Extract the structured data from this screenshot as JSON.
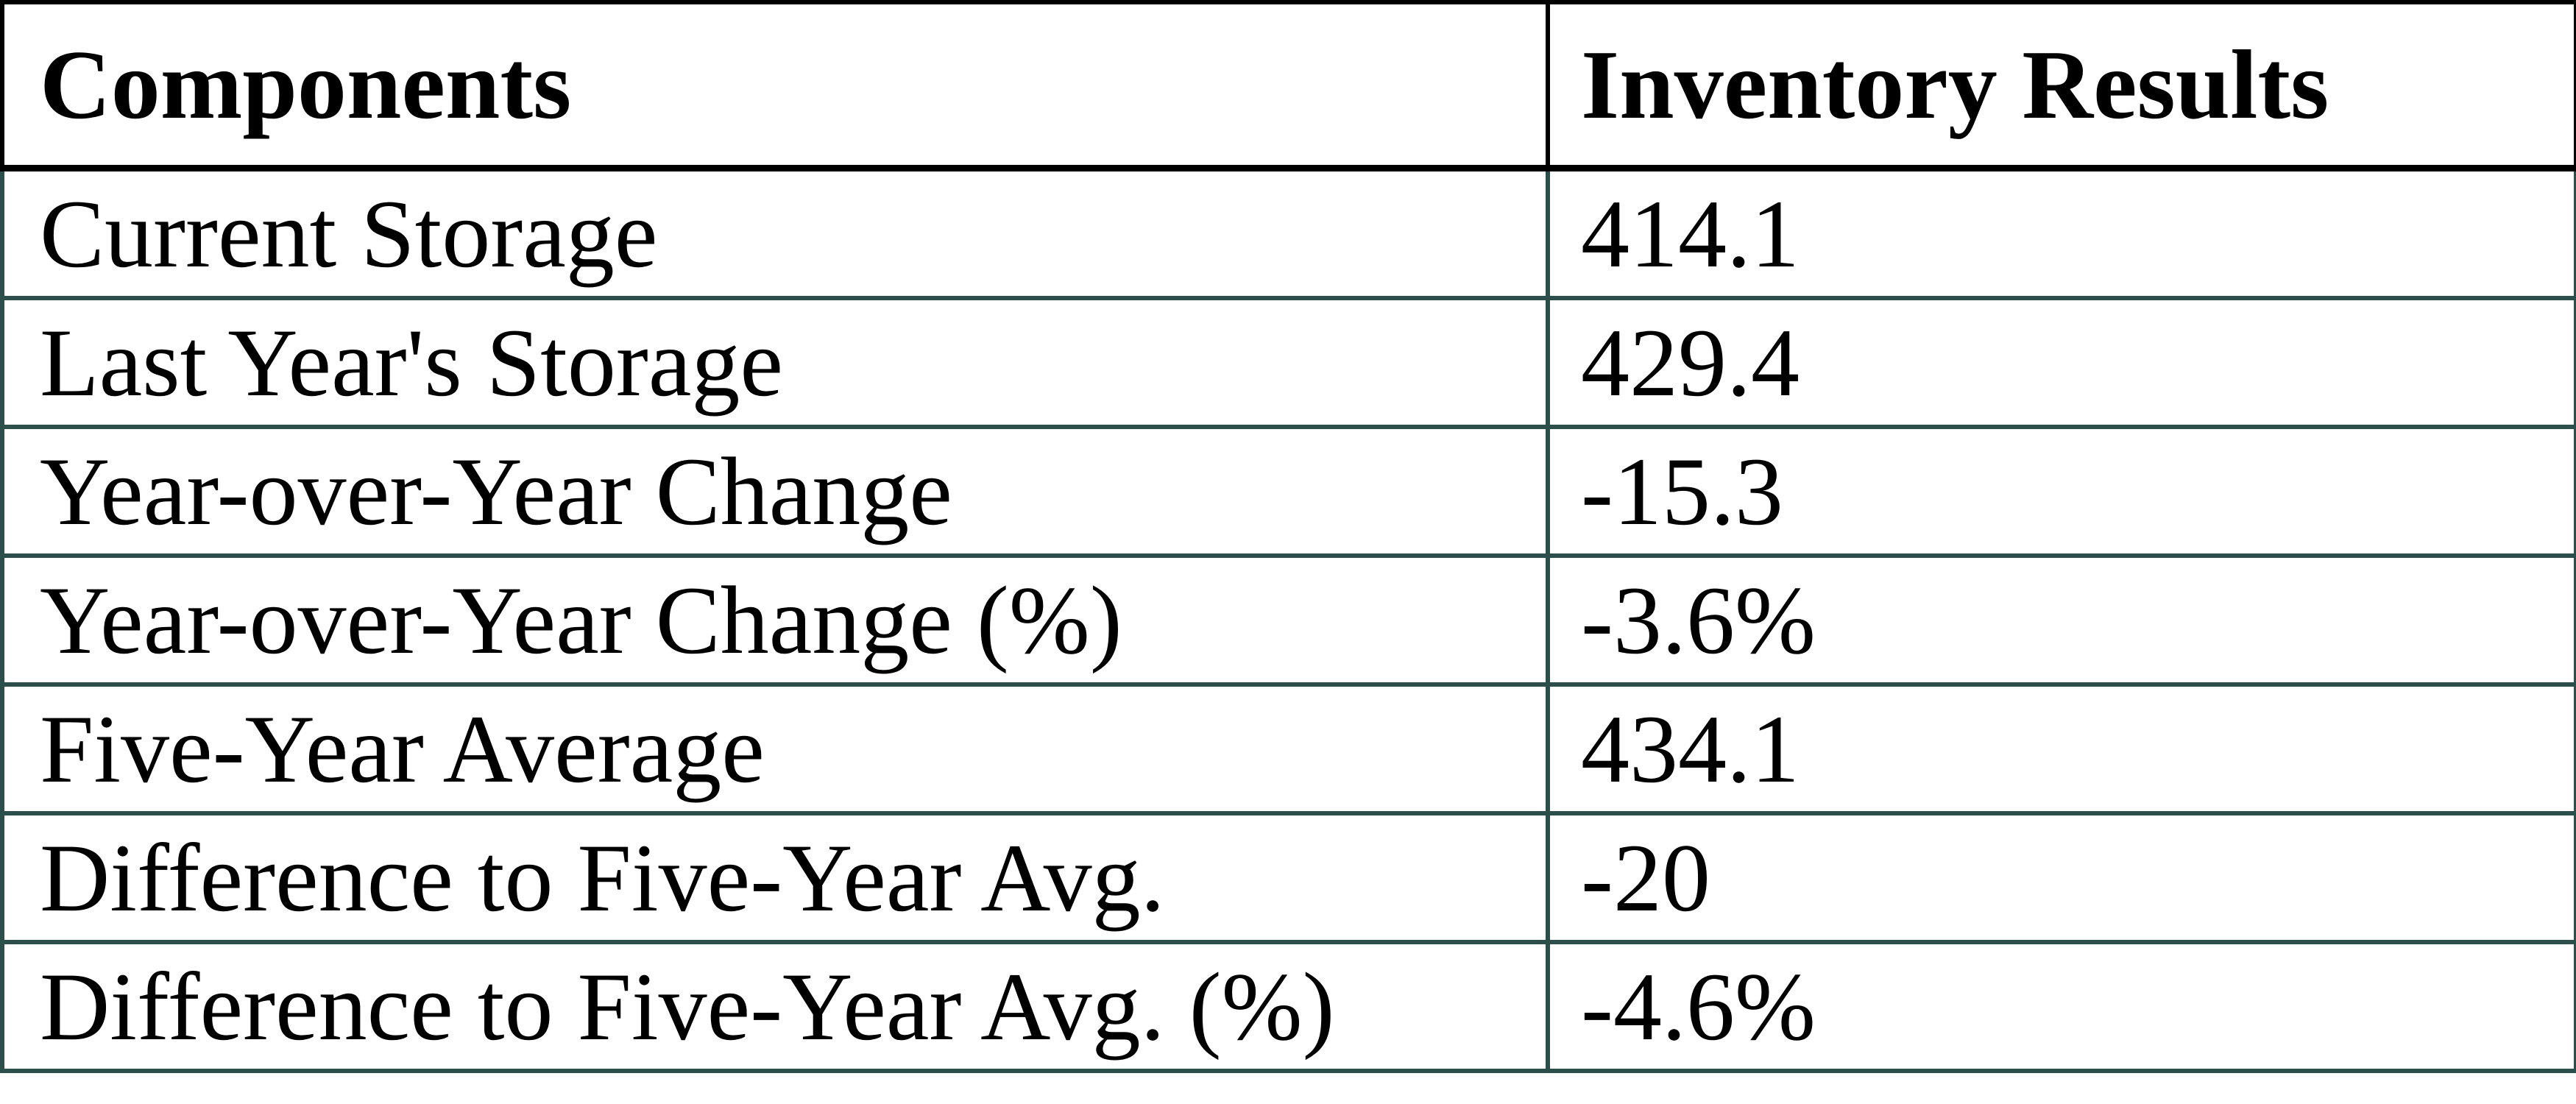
{
  "table": {
    "columns": [
      {
        "label": "Components"
      },
      {
        "label": "Inventory Results"
      }
    ],
    "rows": [
      {
        "component": "Current Storage",
        "value": "414.1"
      },
      {
        "component": "Last Year's Storage",
        "value": "429.4"
      },
      {
        "component": "Year-over-Year Change",
        "value": "-15.3"
      },
      {
        "component": "Year-over-Year Change (%)",
        "value": "-3.6%"
      },
      {
        "component": "Five-Year Average",
        "value": "434.1"
      },
      {
        "component": "Difference to Five-Year Avg.",
        "value": "-20"
      },
      {
        "component": "Difference to Five-Year Avg. (%)",
        "value": "-4.6%"
      }
    ],
    "style": {
      "header_border_color": "#000000",
      "body_border_color": "#2d4f4b",
      "text_color": "#000000",
      "background_color": "#ffffff"
    }
  }
}
